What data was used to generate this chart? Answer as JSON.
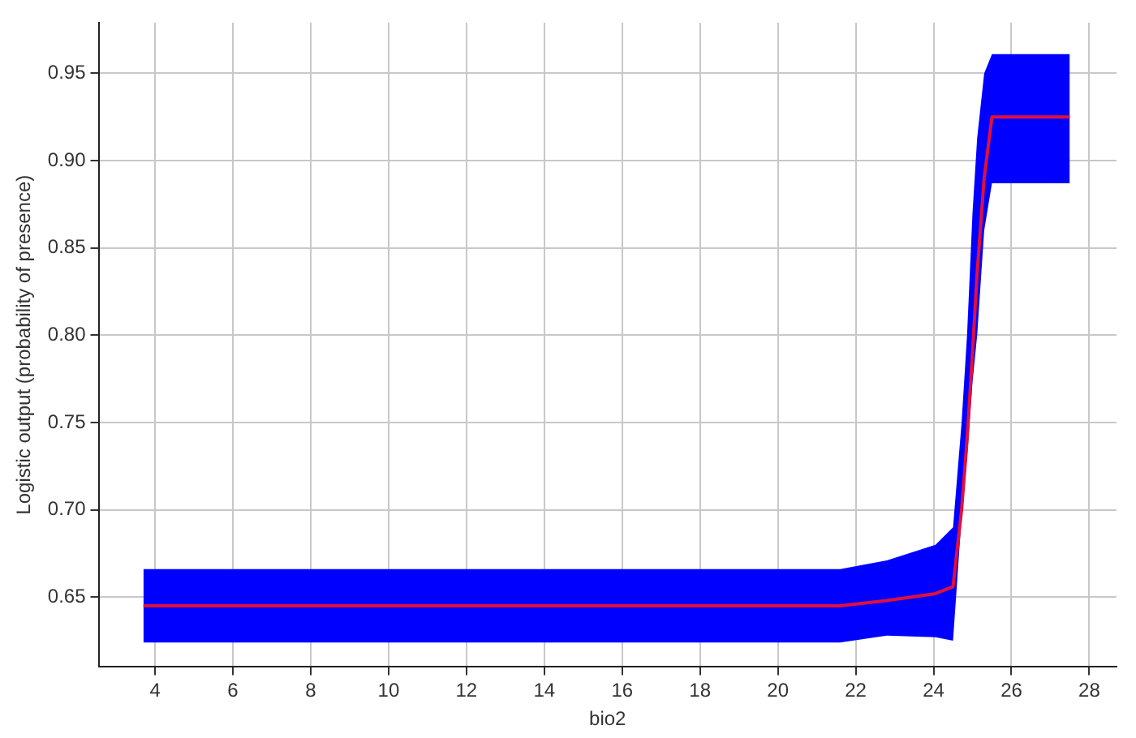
{
  "chart_data": {
    "type": "line",
    "xlabel": "bio2",
    "ylabel": "Logistic output (probability of presence)",
    "x": [
      3.7,
      21.6,
      22.8,
      24.05,
      24.5,
      24.72,
      24.86,
      25.0,
      25.12,
      25.3,
      25.5,
      27.5
    ],
    "series": [
      {
        "color": "#e0103c",
        "values": [
          0.645,
          0.645,
          0.648,
          0.652,
          0.656,
          0.7,
          0.74,
          0.79,
          0.836,
          0.89,
          0.925,
          0.925
        ],
        "lower": [
          0.624,
          0.624,
          0.628,
          0.627,
          0.625,
          0.696,
          0.73,
          0.773,
          0.8,
          0.86,
          0.887,
          0.887
        ],
        "upper": [
          0.666,
          0.666,
          0.671,
          0.68,
          0.69,
          0.75,
          0.8,
          0.87,
          0.913,
          0.95,
          0.961,
          0.961
        ]
      }
    ],
    "xlim": [
      2.55,
      28.7
    ],
    "xticks": [
      4,
      6,
      8,
      10,
      12,
      14,
      16,
      18,
      20,
      22,
      24,
      26,
      28
    ],
    "ylim": [
      0.61,
      0.979
    ],
    "yticks": [
      {
        "value": 0.65,
        "label": "0.65"
      },
      {
        "value": 0.7,
        "label": "0.70"
      },
      {
        "value": 0.75,
        "label": "0.75"
      },
      {
        "value": 0.8,
        "label": "0.80"
      },
      {
        "value": 0.85,
        "label": "0.85"
      },
      {
        "value": 0.9,
        "label": "0.90"
      },
      {
        "value": 0.95,
        "label": "0.95"
      }
    ],
    "grid": true,
    "legend": false
  }
}
